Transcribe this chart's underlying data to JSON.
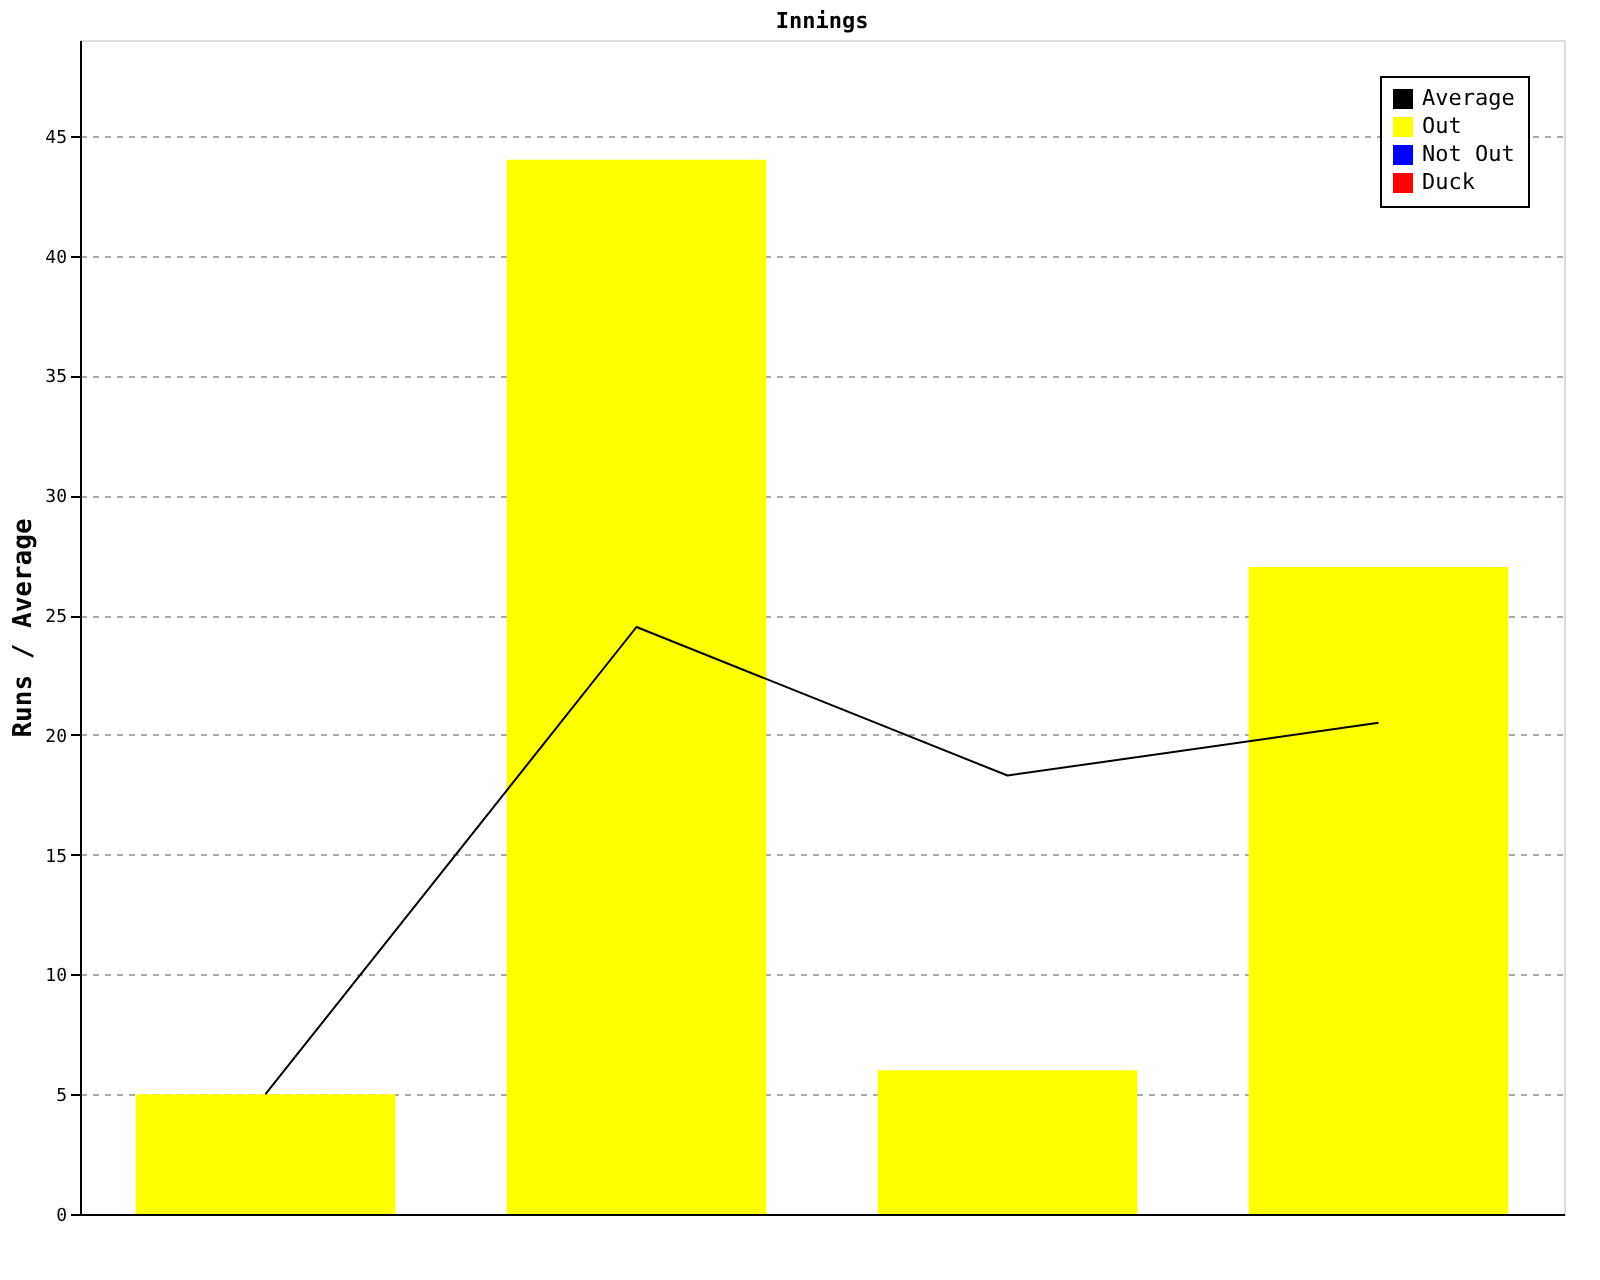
{
  "chart_data": {
    "type": "bar",
    "title": "Innings",
    "ylabel": "Runs / Average",
    "categories": [
      null,
      null,
      null,
      null
    ],
    "series": [
      {
        "name": "Average",
        "type": "line",
        "color": "#000000",
        "values": [
          5,
          24.5,
          18.3,
          20.5
        ]
      },
      {
        "name": "Out",
        "color": "#ffff00",
        "values": [
          5,
          44,
          6,
          27
        ]
      },
      {
        "name": "Not Out",
        "color": "#0000ff",
        "values": [
          null,
          null,
          null,
          null
        ]
      },
      {
        "name": "Duck",
        "color": "#ff0000",
        "values": [
          null,
          null,
          null,
          null
        ]
      }
    ],
    "ylim": [
      0,
      49
    ],
    "yticks": [
      0,
      5,
      10,
      15,
      20,
      25,
      30,
      35,
      40,
      45
    ],
    "grid": "y",
    "legend": "top right",
    "tick_labels": "y",
    "marker": "none",
    "line_style": "solid"
  }
}
